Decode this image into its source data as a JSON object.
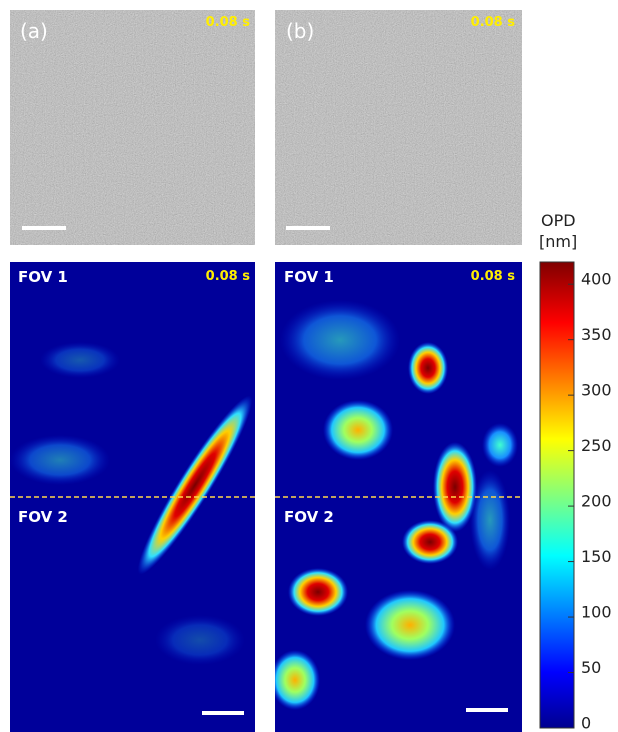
{
  "panels": [
    {
      "label": "(a)",
      "time": "0.08 s",
      "fov_top": "FOV 1",
      "time_map": "0.08 s",
      "fov_bottom": "FOV 2"
    },
    {
      "label": "(b)",
      "time": "0.08 s",
      "fov_top": "FOV 1",
      "time_map": "0.08 s",
      "fov_bottom": "FOV 2"
    }
  ],
  "colorbar": {
    "title": "OPD",
    "unit": "[nm]",
    "lim": [
      0,
      420
    ],
    "ticks": [
      0,
      50,
      100,
      150,
      200,
      250,
      300,
      350,
      400
    ]
  }
}
